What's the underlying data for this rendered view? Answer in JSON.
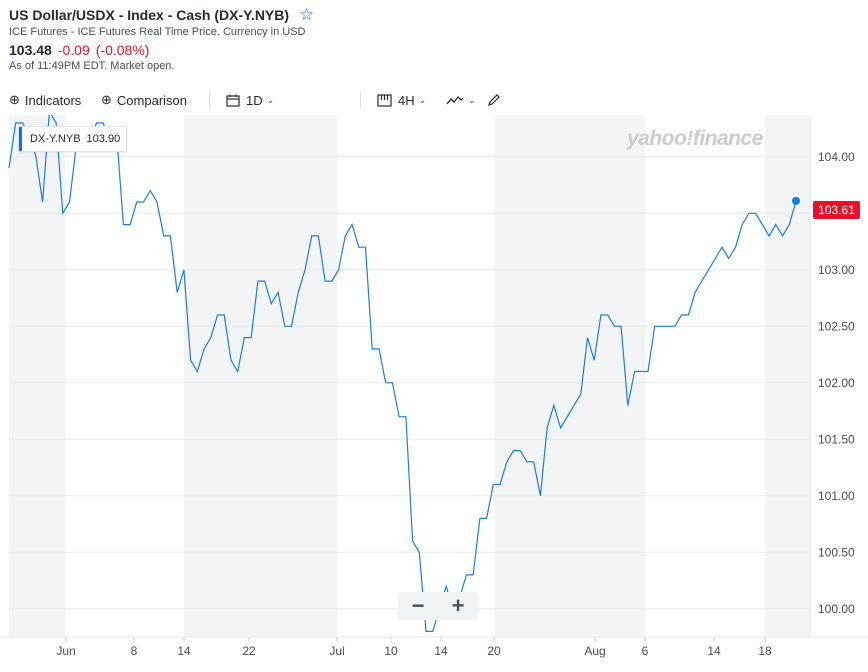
{
  "header": {
    "title": "US Dollar/USDX - Index - Cash (DX-Y.NYB)",
    "subtitle": "ICE Futures - ICE Futures Real Time Price. Currency in USD",
    "price": "103.48",
    "change": "-0.09",
    "change_pct": "(-0.08%)",
    "as_of": "As of 11:49PM EDT. Market open.",
    "star_icon": "star-outline-icon"
  },
  "toolbar": {
    "indicators": "Indicators",
    "comparison": "Comparison",
    "range": "1D",
    "interval": "4H"
  },
  "legend": {
    "symbol": "DX-Y.NYB",
    "value": "103.90"
  },
  "watermark": "yahoo!finance",
  "last_price_label": "103.61",
  "zoom": {
    "minus": "−",
    "plus": "+"
  },
  "colors": {
    "line": "#1a7de0",
    "negative": "#eb0f29",
    "accent": "#0f69ff",
    "band": "#f3f4f5"
  },
  "chart_data": {
    "type": "line",
    "title": "",
    "xlabel": "",
    "ylabel": "",
    "ylim": [
      99.75,
      104.37
    ],
    "y_ticks": [
      "100.00",
      "100.50",
      "101.00",
      "101.50",
      "102.00",
      "102.50",
      "103.00",
      "103.50",
      "104.00"
    ],
    "x_ticks": [
      "Jun",
      "8",
      "14",
      "22",
      "Jul",
      "10",
      "14",
      "20",
      "Aug",
      "6",
      "14",
      "18"
    ],
    "grid": true,
    "series": [
      {
        "name": "DX-Y.NYB",
        "values": [
          103.9,
          104.3,
          104.3,
          104.2,
          104.0,
          103.6,
          104.4,
          104.3,
          103.5,
          103.6,
          104.1,
          104.1,
          104.1,
          104.3,
          104.3,
          104.1,
          104.2,
          103.4,
          103.4,
          103.6,
          103.6,
          103.7,
          103.6,
          103.3,
          103.3,
          102.8,
          103.0,
          102.2,
          102.1,
          102.3,
          102.4,
          102.6,
          102.6,
          102.2,
          102.1,
          102.4,
          102.4,
          102.9,
          102.9,
          102.7,
          102.8,
          102.5,
          102.5,
          102.8,
          103.0,
          103.3,
          103.3,
          102.9,
          102.9,
          103.0,
          103.3,
          103.4,
          103.2,
          103.2,
          102.3,
          102.3,
          102.0,
          102.0,
          101.7,
          101.7,
          100.6,
          100.5,
          99.8,
          99.8,
          100.0,
          100.2,
          100.0,
          100.1,
          100.3,
          100.3,
          100.8,
          100.8,
          101.1,
          101.1,
          101.3,
          101.4,
          101.4,
          101.3,
          101.3,
          101.0,
          101.6,
          101.8,
          101.6,
          101.7,
          101.8,
          101.9,
          102.4,
          102.2,
          102.6,
          102.6,
          102.5,
          102.5,
          101.8,
          102.1,
          102.1,
          102.1,
          102.5,
          102.5,
          102.5,
          102.5,
          102.6,
          102.6,
          102.8,
          102.9,
          103.0,
          103.1,
          103.2,
          103.1,
          103.2,
          103.4,
          103.5,
          103.5,
          103.4,
          103.3,
          103.4,
          103.3,
          103.4,
          103.61
        ]
      }
    ]
  }
}
